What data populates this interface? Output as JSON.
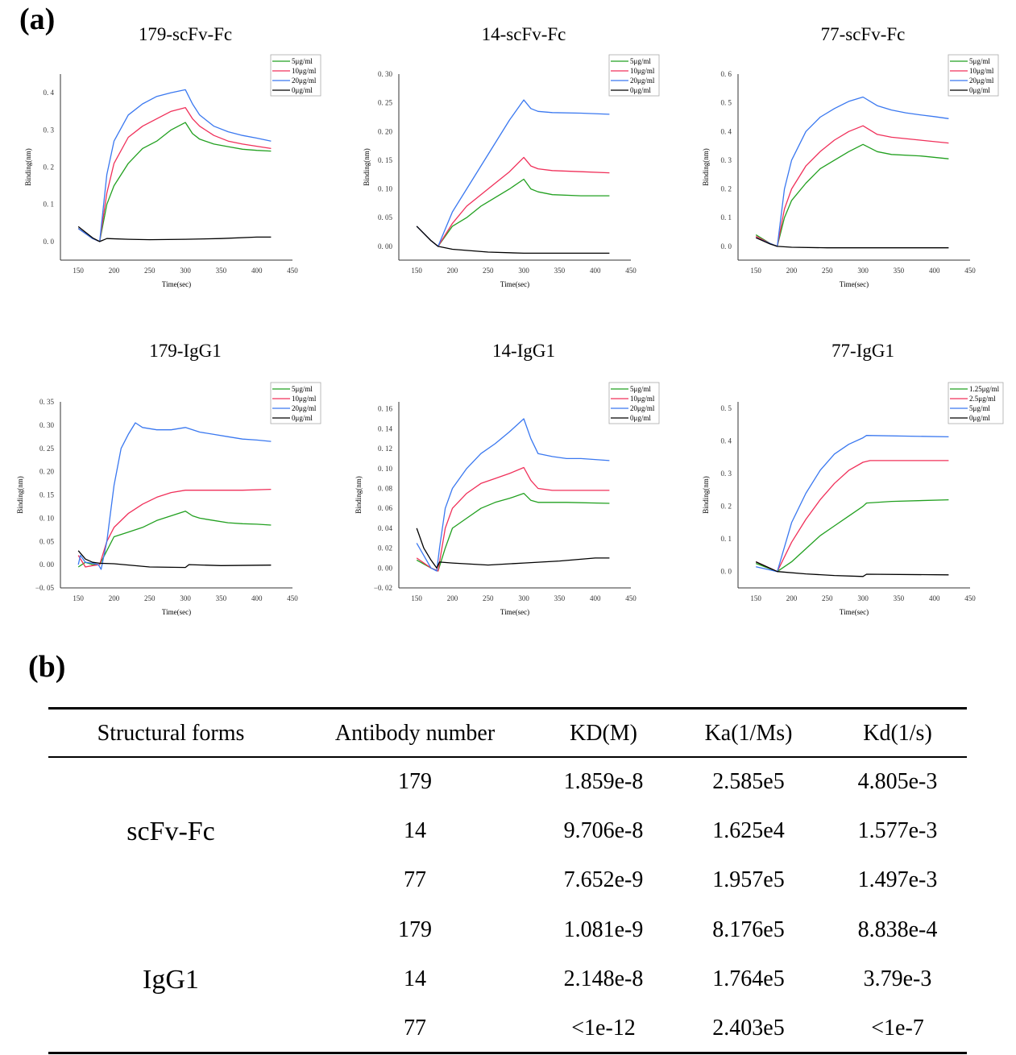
{
  "panel_a_label": "(a)",
  "panel_b_label": "(b)",
  "chart_data": [
    {
      "type": "line",
      "title": "179-scFv-Fc",
      "xlabel": "Time(sec)",
      "ylabel": "Binding(nm)",
      "xlim": [
        125,
        450
      ],
      "ylim": [
        -0.05,
        0.45
      ],
      "xticks": [
        150,
        200,
        250,
        300,
        350,
        400,
        450
      ],
      "yticks": [
        0,
        0.1,
        0.2,
        0.3,
        0.4
      ],
      "ytick_labels": [
        "0. 0",
        "0. 1",
        "0. 2",
        "0. 3",
        "0. 4"
      ],
      "legend_position": "top-right",
      "series": [
        {
          "name": "5μg/ml",
          "color": "#22a020",
          "x": [
            150,
            170,
            180,
            190,
            200,
            220,
            240,
            260,
            280,
            300,
            310,
            320,
            340,
            360,
            380,
            400,
            420
          ],
          "y": [
            0.035,
            0.008,
            0,
            0.1,
            0.15,
            0.21,
            0.25,
            0.27,
            0.3,
            0.32,
            0.29,
            0.275,
            0.262,
            0.255,
            0.248,
            0.245,
            0.243
          ]
        },
        {
          "name": "10μg/ml",
          "color": "#f0305a",
          "x": [
            150,
            170,
            180,
            190,
            200,
            220,
            240,
            260,
            280,
            300,
            310,
            320,
            340,
            360,
            380,
            400,
            420
          ],
          "y": [
            0.035,
            0.008,
            0,
            0.13,
            0.21,
            0.28,
            0.31,
            0.33,
            0.35,
            0.36,
            0.33,
            0.31,
            0.285,
            0.27,
            0.262,
            0.256,
            0.25
          ]
        },
        {
          "name": "20μg/ml",
          "color": "#3a78f0",
          "x": [
            150,
            170,
            180,
            190,
            200,
            220,
            240,
            260,
            280,
            300,
            310,
            320,
            340,
            360,
            380,
            400,
            420
          ],
          "y": [
            0.035,
            0.008,
            0,
            0.18,
            0.27,
            0.34,
            0.37,
            0.39,
            0.4,
            0.408,
            0.37,
            0.34,
            0.31,
            0.295,
            0.285,
            0.278,
            0.27
          ]
        },
        {
          "name": "0μg/ml",
          "color": "#000000",
          "x": [
            150,
            170,
            180,
            190,
            220,
            250,
            300,
            350,
            400,
            420
          ],
          "y": [
            0.04,
            0.01,
            0,
            0.008,
            0.006,
            0.005,
            0.006,
            0.008,
            0.012,
            0.012
          ]
        }
      ]
    },
    {
      "type": "line",
      "title": "14-scFv-Fc",
      "xlabel": "Time(sec)",
      "ylabel": "Binding(nm)",
      "xlim": [
        125,
        450
      ],
      "ylim": [
        -0.024,
        0.3
      ],
      "xticks": [
        150,
        200,
        250,
        300,
        350,
        400,
        450
      ],
      "yticks": [
        0,
        0.05,
        0.1,
        0.15,
        0.2,
        0.25,
        0.3
      ],
      "ytick_labels": [
        "0. 00",
        "0. 05",
        "0. 10",
        "0. 15",
        "0. 20",
        "0. 25",
        "0. 30"
      ],
      "legend_position": "top-right",
      "series": [
        {
          "name": "5μg/ml",
          "color": "#22a020",
          "x": [
            150,
            170,
            180,
            200,
            220,
            240,
            260,
            280,
            300,
            310,
            320,
            340,
            380,
            420
          ],
          "y": [
            0.035,
            0.01,
            0,
            0.035,
            0.05,
            0.07,
            0.085,
            0.1,
            0.117,
            0.1,
            0.095,
            0.09,
            0.088,
            0.088
          ]
        },
        {
          "name": "10μg/ml",
          "color": "#f0305a",
          "x": [
            150,
            170,
            180,
            200,
            220,
            240,
            260,
            280,
            300,
            310,
            320,
            340,
            380,
            420
          ],
          "y": [
            0.035,
            0.01,
            0,
            0.04,
            0.07,
            0.09,
            0.11,
            0.13,
            0.155,
            0.14,
            0.135,
            0.132,
            0.13,
            0.128
          ]
        },
        {
          "name": "20μg/ml",
          "color": "#3a78f0",
          "x": [
            150,
            170,
            180,
            200,
            220,
            240,
            260,
            280,
            300,
            310,
            320,
            340,
            380,
            420
          ],
          "y": [
            0.035,
            0.01,
            0,
            0.06,
            0.1,
            0.14,
            0.18,
            0.22,
            0.255,
            0.24,
            0.235,
            0.233,
            0.232,
            0.23
          ]
        },
        {
          "name": "0μg/ml",
          "color": "#000000",
          "x": [
            150,
            170,
            180,
            200,
            250,
            300,
            350,
            420
          ],
          "y": [
            0.035,
            0.01,
            0,
            -0.005,
            -0.01,
            -0.012,
            -0.012,
            -0.012
          ]
        }
      ]
    },
    {
      "type": "line",
      "title": "77-scFv-Fc",
      "xlabel": "Time(sec)",
      "ylabel": "Binding(nm)",
      "xlim": [
        125,
        450
      ],
      "ylim": [
        -0.048,
        0.6
      ],
      "xticks": [
        150,
        200,
        250,
        300,
        350,
        400,
        450
      ],
      "yticks": [
        0,
        0.1,
        0.2,
        0.3,
        0.4,
        0.5,
        0.6
      ],
      "ytick_labels": [
        "0. 0",
        "0. 1",
        "0. 2",
        "0. 3",
        "0. 4",
        "0. 5",
        "0. 6"
      ],
      "legend_position": "top-right",
      "series": [
        {
          "name": "5μg/ml",
          "color": "#22a020",
          "x": [
            150,
            170,
            180,
            190,
            200,
            220,
            240,
            260,
            280,
            300,
            320,
            340,
            380,
            420
          ],
          "y": [
            0.04,
            0.01,
            0,
            0.1,
            0.16,
            0.22,
            0.27,
            0.3,
            0.33,
            0.355,
            0.33,
            0.32,
            0.315,
            0.305
          ]
        },
        {
          "name": "10μg/ml",
          "color": "#f0305a",
          "x": [
            150,
            170,
            180,
            190,
            200,
            220,
            240,
            260,
            280,
            300,
            320,
            340,
            380,
            420
          ],
          "y": [
            0.035,
            0.01,
            0,
            0.13,
            0.2,
            0.28,
            0.33,
            0.37,
            0.4,
            0.42,
            0.39,
            0.38,
            0.37,
            0.36
          ]
        },
        {
          "name": "20μg/ml",
          "color": "#3a78f0",
          "x": [
            150,
            170,
            180,
            190,
            200,
            220,
            240,
            260,
            280,
            300,
            320,
            340,
            360,
            380,
            400,
            420
          ],
          "y": [
            0.03,
            0.01,
            0,
            0.2,
            0.3,
            0.4,
            0.45,
            0.48,
            0.505,
            0.52,
            0.49,
            0.475,
            0.465,
            0.458,
            0.452,
            0.445
          ]
        },
        {
          "name": "0μg/ml",
          "color": "#000000",
          "x": [
            150,
            170,
            180,
            200,
            250,
            300,
            420
          ],
          "y": [
            0.03,
            0.008,
            0,
            -0.003,
            -0.005,
            -0.005,
            -0.005
          ]
        }
      ]
    },
    {
      "type": "line",
      "title": "179-IgG1",
      "xlabel": "Time(sec)",
      "ylabel": "Binding(nm)",
      "xlim": [
        125,
        450
      ],
      "ylim": [
        -0.05,
        0.35
      ],
      "xticks": [
        150,
        200,
        250,
        300,
        350,
        400,
        450
      ],
      "yticks": [
        -0.05,
        0,
        0.05,
        0.1,
        0.15,
        0.2,
        0.25,
        0.3,
        0.35
      ],
      "ytick_labels": [
        "−0. 05",
        "0. 00",
        "0. 05",
        "0. 10",
        "0. 15",
        "0. 20",
        "0. 25",
        "0. 30",
        "0. 35"
      ],
      "legend_position": "top-right",
      "series": [
        {
          "name": "5μg/ml",
          "color": "#22a020",
          "x": [
            150,
            160,
            170,
            180,
            190,
            200,
            220,
            240,
            260,
            280,
            300,
            310,
            320,
            340,
            360,
            380,
            400,
            420
          ],
          "y": [
            -0.005,
            0.005,
            0,
            0,
            0.03,
            0.06,
            0.07,
            0.08,
            0.095,
            0.105,
            0.115,
            0.105,
            0.1,
            0.095,
            0.09,
            0.088,
            0.087,
            0.085
          ]
        },
        {
          "name": "10μg/ml",
          "color": "#f0305a",
          "x": [
            150,
            160,
            170,
            180,
            190,
            200,
            220,
            240,
            260,
            280,
            300,
            340,
            380,
            420
          ],
          "y": [
            0.02,
            -0.005,
            -0.002,
            0,
            0.05,
            0.08,
            0.11,
            0.13,
            0.145,
            0.155,
            0.16,
            0.16,
            0.16,
            0.162
          ]
        },
        {
          "name": "20μg/ml",
          "color": "#3a78f0",
          "x": [
            150,
            153,
            160,
            170,
            178,
            182,
            190,
            200,
            210,
            220,
            230,
            240,
            260,
            280,
            300,
            320,
            340,
            360,
            380,
            400,
            420
          ],
          "y": [
            0.0,
            0.02,
            0.005,
            0.003,
            0.0,
            -0.01,
            0.05,
            0.17,
            0.25,
            0.28,
            0.305,
            0.295,
            0.29,
            0.29,
            0.295,
            0.285,
            0.28,
            0.275,
            0.27,
            0.268,
            0.265
          ]
        },
        {
          "name": "0μg/ml",
          "color": "#000000",
          "x": [
            150,
            160,
            170,
            180,
            200,
            250,
            300,
            305,
            350,
            420
          ],
          "y": [
            0.03,
            0.012,
            0.005,
            0.003,
            0.002,
            -0.005,
            -0.006,
            0.0,
            -0.002,
            -0.001
          ]
        }
      ]
    },
    {
      "type": "line",
      "title": "14-IgG1",
      "xlabel": "Time(sec)",
      "ylabel": "Binding(nm)",
      "xlim": [
        125,
        450
      ],
      "ylim": [
        -0.02,
        0.167
      ],
      "xticks": [
        150,
        200,
        250,
        300,
        350,
        400,
        450
      ],
      "yticks": [
        -0.02,
        0,
        0.02,
        0.04,
        0.06,
        0.08,
        0.1,
        0.12,
        0.14,
        0.16
      ],
      "ytick_labels": [
        "−0. 02",
        "0. 00",
        "0. 02",
        "0. 04",
        "0. 06",
        "0. 08",
        "0. 10",
        "0. 12",
        "0. 14",
        "0. 16"
      ],
      "legend_position": "top-right",
      "series": [
        {
          "name": "5μg/ml",
          "color": "#22a020",
          "x": [
            150,
            170,
            180,
            190,
            200,
            220,
            240,
            260,
            280,
            300,
            310,
            320,
            360,
            420
          ],
          "y": [
            0.008,
            0,
            -0.003,
            0.02,
            0.04,
            0.05,
            0.06,
            0.066,
            0.07,
            0.075,
            0.068,
            0.066,
            0.066,
            0.065
          ]
        },
        {
          "name": "10μg/ml",
          "color": "#f0305a",
          "x": [
            150,
            170,
            180,
            190,
            200,
            220,
            240,
            260,
            280,
            300,
            310,
            320,
            340,
            380,
            420
          ],
          "y": [
            0.01,
            0,
            -0.003,
            0.04,
            0.06,
            0.075,
            0.085,
            0.09,
            0.095,
            0.101,
            0.088,
            0.08,
            0.078,
            0.078,
            0.078
          ]
        },
        {
          "name": "20μg/ml",
          "color": "#3a78f0",
          "x": [
            150,
            170,
            178,
            182,
            190,
            200,
            220,
            240,
            260,
            280,
            300,
            310,
            320,
            340,
            360,
            380,
            420
          ],
          "y": [
            0.025,
            0,
            -0.003,
            0.02,
            0.06,
            0.08,
            0.1,
            0.115,
            0.125,
            0.137,
            0.15,
            0.13,
            0.115,
            0.112,
            0.11,
            0.11,
            0.108
          ]
        },
        {
          "name": "0μg/ml",
          "color": "#000000",
          "x": [
            150,
            160,
            170,
            178,
            182,
            200,
            250,
            300,
            350,
            400,
            420
          ],
          "y": [
            0.04,
            0.02,
            0.008,
            0,
            0.006,
            0.005,
            0.003,
            0.005,
            0.007,
            0.01,
            0.01
          ]
        }
      ]
    },
    {
      "type": "line",
      "title": "77-IgG1",
      "xlabel": "Time(sec)",
      "ylabel": "Binding(nm)",
      "xlim": [
        125,
        450
      ],
      "ylim": [
        -0.05,
        0.52
      ],
      "xticks": [
        150,
        200,
        250,
        300,
        350,
        400,
        450
      ],
      "yticks": [
        0,
        0.1,
        0.2,
        0.3,
        0.4,
        0.5
      ],
      "ytick_labels": [
        "0. 0",
        "0. 1",
        "0. 2",
        "0. 3",
        "0. 4",
        "0. 5"
      ],
      "legend_position": "top-right",
      "series": [
        {
          "name": "1.25μg/ml",
          "color": "#22a020",
          "x": [
            150,
            180,
            200,
            220,
            240,
            260,
            280,
            300,
            305,
            340,
            420
          ],
          "y": [
            0.025,
            0,
            0.03,
            0.07,
            0.11,
            0.14,
            0.17,
            0.2,
            0.21,
            0.215,
            0.22
          ]
        },
        {
          "name": "2.5μg/ml",
          "color": "#f0305a",
          "x": [
            150,
            180,
            200,
            220,
            240,
            260,
            280,
            300,
            310,
            420
          ],
          "y": [
            0.03,
            0,
            0.09,
            0.16,
            0.22,
            0.27,
            0.31,
            0.335,
            0.34,
            0.34
          ]
        },
        {
          "name": "5μg/ml",
          "color": "#3a78f0",
          "x": [
            150,
            180,
            200,
            220,
            240,
            260,
            280,
            300,
            305,
            420
          ],
          "y": [
            0.015,
            0,
            0.15,
            0.24,
            0.31,
            0.36,
            0.39,
            0.41,
            0.417,
            0.413
          ]
        },
        {
          "name": "0μg/ml",
          "color": "#000000",
          "x": [
            150,
            180,
            220,
            260,
            300,
            305,
            420
          ],
          "y": [
            0.03,
            0,
            -0.007,
            -0.012,
            -0.015,
            -0.008,
            -0.01
          ]
        }
      ]
    },
    {
      "type": "table",
      "headers": [
        "Structural forms",
        "Antibody number",
        "KD(M)",
        "Ka(1/Ms)",
        "Kd(1/s)"
      ],
      "groups": [
        {
          "form": "scFv-Fc",
          "rows": [
            [
              "179",
              "1.859e-8",
              "2.585e5",
              "4.805e-3"
            ],
            [
              "14",
              "9.706e-8",
              "1.625e4",
              "1.577e-3"
            ],
            [
              "77",
              "7.652e-9",
              "1.957e5",
              "1.497e-3"
            ]
          ]
        },
        {
          "form": "IgG1",
          "rows": [
            [
              "179",
              "1.081e-9",
              "8.176e5",
              "8.838e-4"
            ],
            [
              "14",
              "2.148e-8",
              "1.764e5",
              "3.79e-3"
            ],
            [
              "77",
              "<1e-12",
              "2.403e5",
              "<1e-7"
            ]
          ]
        }
      ]
    }
  ]
}
